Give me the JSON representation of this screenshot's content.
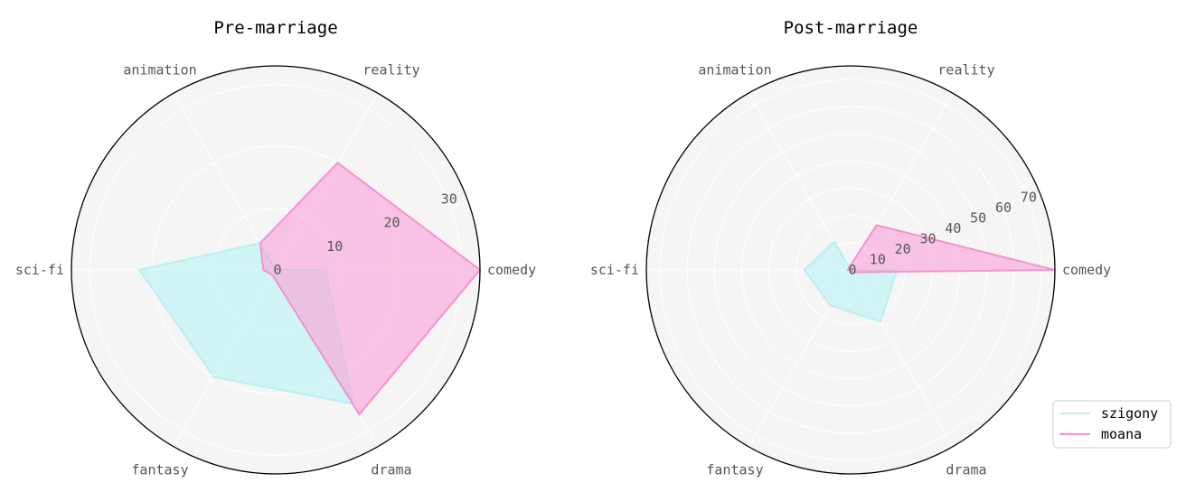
{
  "chart_data": [
    {
      "type": "radar",
      "title": "Pre-marriage",
      "categories": [
        "comedy",
        "reality",
        "animation",
        "sci-fi",
        "fantasy",
        "drama"
      ],
      "rlim": [
        0,
        33
      ],
      "rticks": [
        0,
        10,
        20,
        30
      ],
      "series": [
        {
          "name": "szigony",
          "values": [
            8,
            0,
            5,
            22,
            20,
            25
          ]
        },
        {
          "name": "moana",
          "values": [
            33,
            20,
            5,
            2,
            1,
            27
          ]
        }
      ]
    },
    {
      "type": "radar",
      "title": "Post-marriage",
      "categories": [
        "comedy",
        "reality",
        "animation",
        "sci-fi",
        "fantasy",
        "drama"
      ],
      "rlim": [
        0,
        75
      ],
      "rticks": [
        0,
        10,
        20,
        30,
        40,
        50,
        60,
        70
      ],
      "series": [
        {
          "name": "szigony",
          "values": [
            17,
            0,
            12,
            17,
            15,
            22
          ]
        },
        {
          "name": "moana",
          "values": [
            75,
            19,
            1,
            1,
            0,
            1
          ]
        }
      ]
    }
  ],
  "legend": {
    "items": [
      {
        "name": "szigony",
        "color": "#b7f0f0"
      },
      {
        "name": "moana",
        "color": "#f592cf"
      }
    ],
    "placement": "lower-right"
  },
  "colors": {
    "szigony_line": "#b7f0f0",
    "szigony_fill": "#b8f4f4",
    "moana_line": "#f592cf",
    "moana_fill": "#f7a6d8",
    "axes_bg": "#f5f5f5",
    "grid": "#ffffff"
  }
}
